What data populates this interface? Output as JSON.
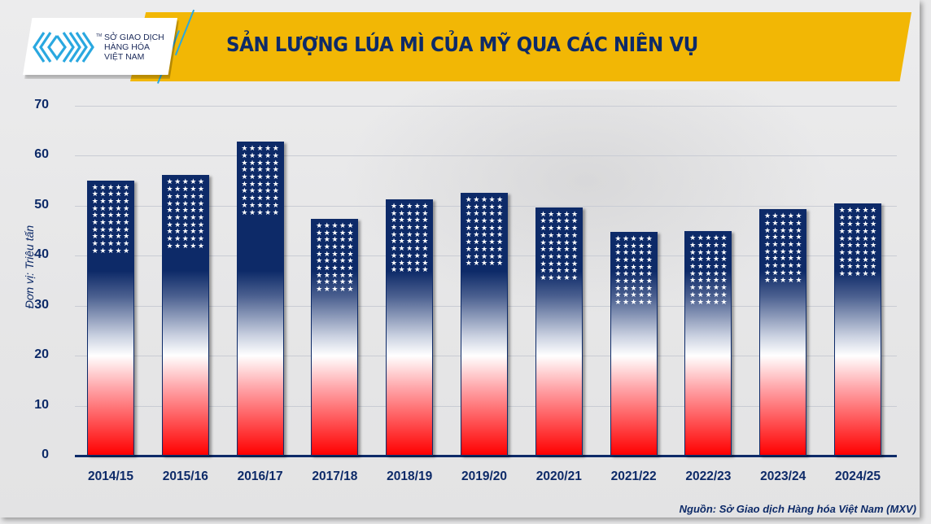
{
  "header": {
    "logo_text": [
      "SỞ GIAO DỊCH",
      "HÀNG HÓA",
      "VIỆT NAM"
    ],
    "logo_tm": "TM",
    "title": "SẢN LƯỢNG LÚA MÌ CỦA MỸ QUA CÁC NIÊN VỤ"
  },
  "colors": {
    "title_band": "#f2b705",
    "navy": "#0d2a68",
    "red": "#ff0000",
    "logo_blue": "#2aa8e0"
  },
  "chart_data": {
    "type": "bar",
    "title": "SẢN LƯỢNG LÚA MÌ CỦA MỸ QUA CÁC NIÊN VỤ",
    "xlabel": "",
    "ylabel": "Đơn vị: Triệu tấn",
    "ylim": [
      0,
      70
    ],
    "yticks": [
      0,
      10,
      20,
      30,
      40,
      50,
      60,
      70
    ],
    "grid": true,
    "legend": null,
    "categories": [
      "2014/15",
      "2015/16",
      "2016/17",
      "2017/18",
      "2018/19",
      "2019/20",
      "2020/21",
      "2021/22",
      "2022/23",
      "2023/24",
      "2024/25"
    ],
    "values": [
      55.1,
      56.1,
      62.8,
      47.4,
      51.3,
      52.6,
      49.7,
      44.8,
      44.9,
      49.3,
      50.5
    ],
    "source": "Nguồn: Sở Giao dịch Hàng hóa Việt Nam (MXV)"
  },
  "footer": {
    "source": "Nguồn: Sở Giao dịch Hàng hóa Việt Nam (MXV)"
  },
  "star_glyph": "★"
}
